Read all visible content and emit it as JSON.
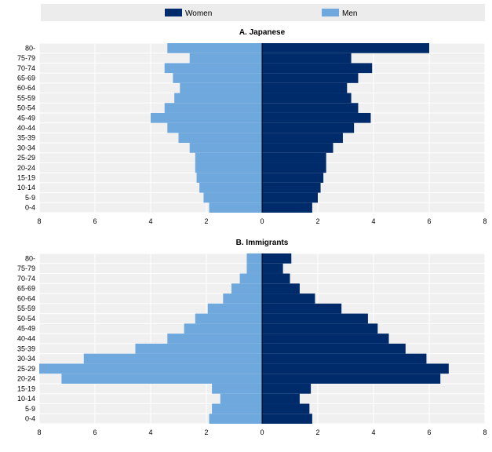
{
  "legend": {
    "women": "Women",
    "men": "Men"
  },
  "colors": {
    "women": "#002b6b",
    "men": "#6fa8dc",
    "panel_bg": "#f0f0f0",
    "legend_bg": "#ececec",
    "grid": "#ffffff"
  },
  "chart_data": [
    {
      "type": "bar",
      "title": "A. Japanese",
      "categories": [
        "0-4",
        "5-9",
        "10-14",
        "15-19",
        "20-24",
        "25-29",
        "30-34",
        "35-39",
        "40-44",
        "45-49",
        "50-54",
        "55-59",
        "60-64",
        "65-69",
        "70-74",
        "75-79",
        "80-"
      ],
      "series": [
        {
          "name": "Women",
          "values": [
            1.8,
            2.0,
            2.1,
            2.2,
            2.3,
            2.3,
            2.55,
            2.9,
            3.3,
            3.9,
            3.45,
            3.2,
            3.05,
            3.45,
            3.95,
            3.2,
            6.0
          ]
        },
        {
          "name": "Men",
          "values": [
            1.9,
            2.1,
            2.25,
            2.35,
            2.4,
            2.4,
            2.6,
            3.0,
            3.4,
            4.0,
            3.5,
            3.15,
            2.95,
            3.2,
            3.5,
            2.6,
            3.4
          ]
        }
      ],
      "xlim": [
        -8,
        8
      ],
      "xticks": [
        "8",
        "6",
        "4",
        "2",
        "0",
        "2",
        "4",
        "6",
        "8"
      ],
      "grid": true
    },
    {
      "type": "bar",
      "title": "B. Immigrants",
      "categories": [
        "0-4",
        "5-9",
        "10-14",
        "15-19",
        "20-24",
        "25-29",
        "30-34",
        "35-39",
        "40-44",
        "45-49",
        "50-54",
        "55-59",
        "60-64",
        "65-69",
        "70-74",
        "75-79",
        "80-"
      ],
      "series": [
        {
          "name": "Women",
          "values": [
            1.8,
            1.7,
            1.35,
            1.75,
            6.4,
            6.7,
            5.9,
            5.15,
            4.55,
            4.15,
            3.8,
            2.85,
            1.9,
            1.35,
            1.0,
            0.75,
            1.05
          ]
        },
        {
          "name": "Men",
          "values": [
            1.9,
            1.8,
            1.5,
            1.8,
            7.2,
            8.0,
            6.4,
            4.55,
            3.4,
            2.8,
            2.4,
            1.95,
            1.4,
            1.1,
            0.8,
            0.55,
            0.55
          ]
        }
      ],
      "xlim": [
        -8,
        8
      ],
      "xticks": [
        "8",
        "6",
        "4",
        "2",
        "0",
        "2",
        "4",
        "6",
        "8"
      ],
      "grid": true
    }
  ]
}
